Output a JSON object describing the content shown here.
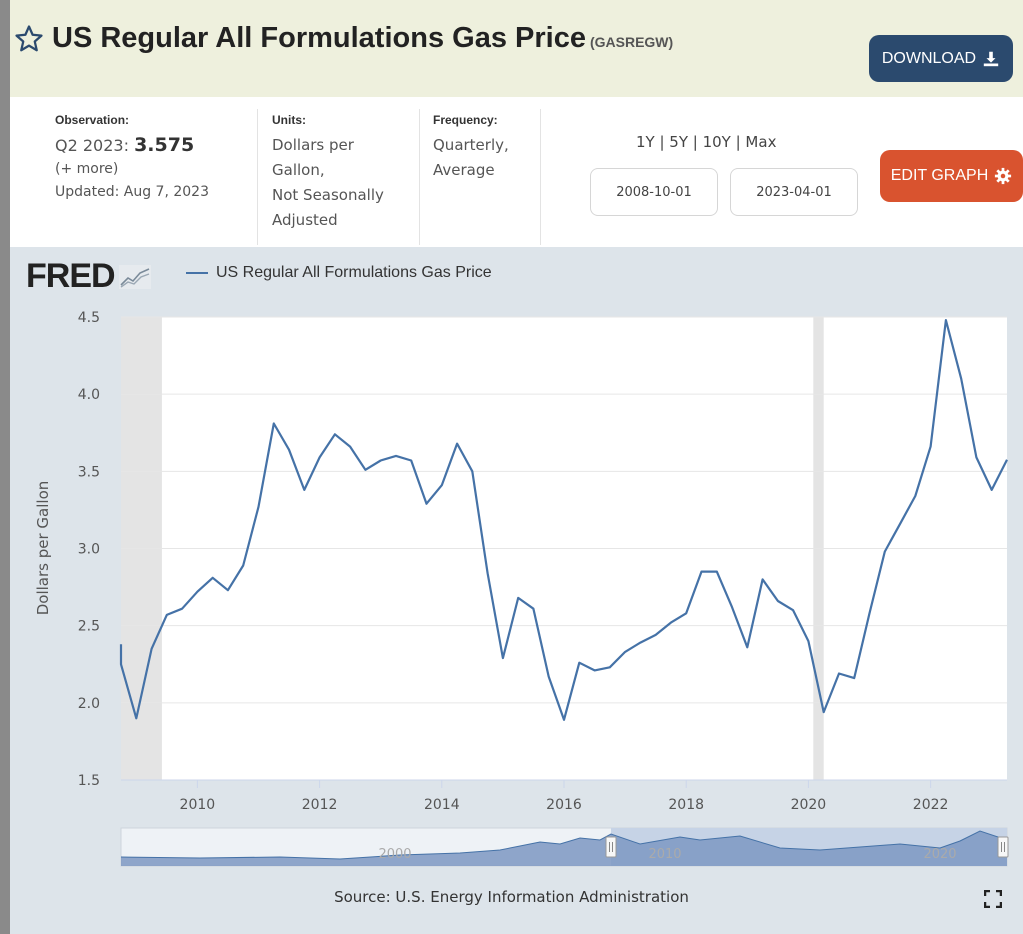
{
  "header": {
    "title": "US Regular All Formulations Gas Price",
    "series_code": "(GASREGW)",
    "download_label": "DOWNLOAD"
  },
  "info": {
    "observation_label": "Observation:",
    "observation_date": "Q2 2023:",
    "observation_value": "3.575",
    "more_label": "(+ more)",
    "updated": "Updated: Aug 7, 2023",
    "units_label": "Units:",
    "units_lines": [
      "Dollars per",
      "Gallon,",
      "Not Seasonally",
      "Adjusted"
    ],
    "frequency_label": "Frequency:",
    "frequency_lines": [
      "Quarterly,",
      "Average"
    ],
    "ranges": "1Y | 5Y | 10Y | Max",
    "start_date": "2008-10-01",
    "end_date": "2023-04-01",
    "edit_label": "EDIT GRAPH"
  },
  "chart": {
    "logo": "FRED",
    "legend": "US Regular All Formulations Gas Price",
    "ylabel": "Dollars per Gallon",
    "source": "Source: U.S. Energy Information Administration",
    "navigator_labels": [
      "2000",
      "2010",
      "2020"
    ]
  },
  "colors": {
    "line": "#4572a7",
    "recession": "#e4e4e4",
    "download": "#2b4a6e",
    "edit": "#d9532f"
  },
  "chart_data": {
    "type": "line",
    "ylabel": "Dollars per Gallon",
    "ylim": [
      1.5,
      4.5
    ],
    "yticks": [
      1.5,
      2.0,
      2.5,
      3.0,
      3.5,
      4.0,
      4.5
    ],
    "xticks": [
      2010,
      2012,
      2014,
      2016,
      2018,
      2020,
      2022
    ],
    "xlim": [
      2008.75,
      2023.25
    ],
    "grid": true,
    "legend_position": "top-left",
    "recessions": [
      [
        2008.75,
        2009.42
      ],
      [
        2020.08,
        2020.25
      ]
    ],
    "series": [
      {
        "name": "US Regular All Formulations Gas Price",
        "x": [
          "2008-10-01",
          "2009-01-01",
          "2009-04-01",
          "2009-07-01",
          "2009-10-01",
          "2010-01-01",
          "2010-04-01",
          "2010-07-01",
          "2010-10-01",
          "2011-01-01",
          "2011-04-01",
          "2011-07-01",
          "2011-10-01",
          "2012-01-01",
          "2012-04-01",
          "2012-07-01",
          "2012-10-01",
          "2013-01-01",
          "2013-04-01",
          "2013-07-01",
          "2013-10-01",
          "2014-01-01",
          "2014-04-01",
          "2014-07-01",
          "2014-10-01",
          "2015-01-01",
          "2015-04-01",
          "2015-07-01",
          "2015-10-01",
          "2016-01-01",
          "2016-04-01",
          "2016-07-01",
          "2016-10-01",
          "2017-01-01",
          "2017-04-01",
          "2017-07-01",
          "2017-10-01",
          "2018-01-01",
          "2018-04-01",
          "2018-07-01",
          "2018-10-01",
          "2019-01-01",
          "2019-04-01",
          "2019-07-01",
          "2019-10-01",
          "2020-01-01",
          "2020-04-01",
          "2020-07-01",
          "2020-10-01",
          "2021-01-01",
          "2021-04-01",
          "2021-07-01",
          "2021-10-01",
          "2022-01-01",
          "2022-04-01",
          "2022-07-01",
          "2022-10-01",
          "2023-01-01",
          "2023-04-01"
        ],
        "values": [
          2.25,
          1.9,
          2.35,
          2.57,
          2.61,
          2.72,
          2.81,
          2.73,
          2.89,
          3.27,
          3.81,
          3.64,
          3.38,
          3.59,
          3.74,
          3.66,
          3.51,
          3.57,
          3.6,
          3.57,
          3.29,
          3.41,
          3.68,
          3.5,
          2.84,
          2.29,
          2.68,
          2.61,
          2.17,
          1.89,
          2.26,
          2.21,
          2.23,
          2.33,
          2.39,
          2.44,
          2.52,
          2.58,
          2.85,
          2.85,
          2.62,
          2.36,
          2.8,
          2.66,
          2.6,
          2.4,
          1.94,
          2.19,
          2.16,
          2.58,
          2.98,
          3.16,
          3.34,
          3.66,
          4.48,
          4.1,
          3.59,
          3.38,
          3.575
        ]
      }
    ]
  }
}
